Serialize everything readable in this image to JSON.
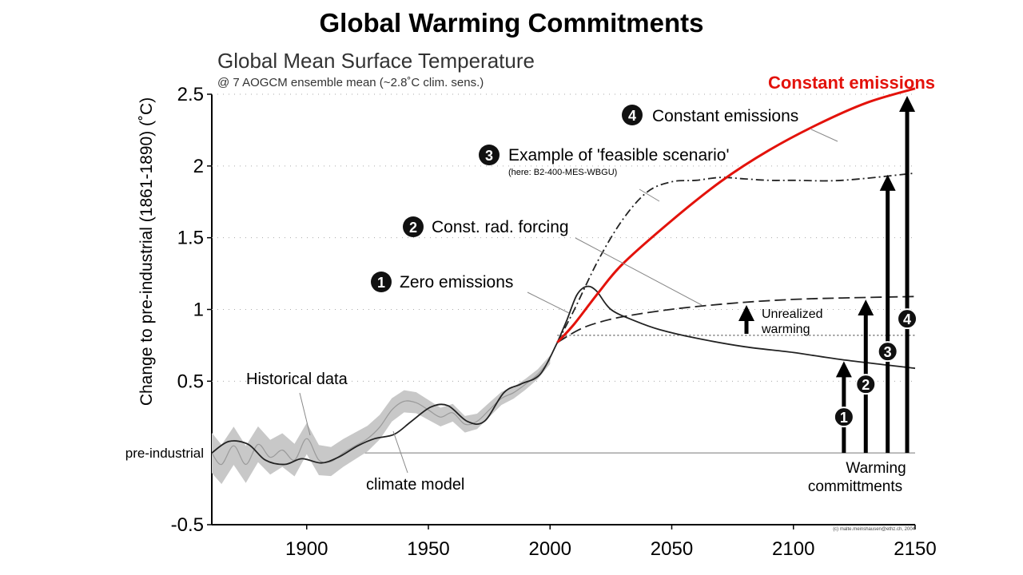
{
  "slide": {
    "title": "Global Warming Commitments"
  },
  "chart_data": {
    "type": "line",
    "title": "Global Mean Surface Temperature",
    "subtitle": "@ 7 AOGCM ensemble mean (~2.8˚C clim. sens.)",
    "ylabel": "Change to pre-industrial (1861-1890) (˚C)",
    "xlabel": "",
    "xlim": [
      1861,
      2150
    ],
    "ylim": [
      -0.5,
      2.5
    ],
    "x_ticks": [
      "1900",
      "1950",
      "2000",
      "2050",
      "2100",
      "2150"
    ],
    "y_ticks": [
      "-0.5",
      "0.5",
      "1",
      "1.5",
      "2",
      "2.5"
    ],
    "y_ref_label": "pre-industrial",
    "highlight_label": "Constant emissions",
    "credit": "(c) malte.meinshausen@ethz.ch, 2004",
    "colors": {
      "highlight": "#e3120b",
      "line": "#222222",
      "band": "#c8c8c8",
      "axis": "#000000"
    },
    "annotations": {
      "historical": "Historical data",
      "model": "climate model",
      "unrealized_1": "Unrealized",
      "unrealized_2": "warming",
      "commit_1": "Warming",
      "commit_2": "committments"
    },
    "scenarios": [
      {
        "num": "1",
        "label": "Zero emissions"
      },
      {
        "num": "2",
        "label": "Const. rad. forcing"
      },
      {
        "num": "3",
        "label": "Example of 'feasible scenario'",
        "sublabel": "(here: B2-400-MES-WBGU)"
      },
      {
        "num": "4",
        "label": "Constant emissions"
      }
    ],
    "series": [
      {
        "key": "model",
        "x": [
          1861,
          1868,
          1876,
          1883,
          1891,
          1898,
          1906,
          1913,
          1921,
          1928,
          1936,
          1943,
          1951,
          1958,
          1966,
          1973,
          1981,
          1988,
          1996,
          2003
        ],
        "y": [
          0.0,
          0.08,
          0.06,
          -0.05,
          -0.08,
          -0.04,
          -0.07,
          -0.03,
          0.05,
          0.1,
          0.13,
          0.22,
          0.32,
          0.33,
          0.22,
          0.22,
          0.42,
          0.48,
          0.55,
          0.77
        ]
      },
      {
        "key": "historical",
        "x": [
          1861,
          1865,
          1870,
          1875,
          1880,
          1885,
          1890,
          1895,
          1900,
          1905,
          1910,
          1915,
          1920,
          1925,
          1930,
          1935,
          1940,
          1945,
          1950,
          1955,
          1960,
          1965,
          1970,
          1975,
          1980,
          1985,
          1990,
          1995,
          2000
        ],
        "y": [
          0.0,
          -0.08,
          0.05,
          -0.08,
          0.06,
          -0.03,
          0.02,
          -0.05,
          0.1,
          -0.05,
          -0.06,
          0.0,
          0.05,
          0.1,
          0.18,
          0.3,
          0.36,
          0.35,
          0.3,
          0.25,
          0.28,
          0.2,
          0.22,
          0.3,
          0.38,
          0.42,
          0.48,
          0.55,
          0.65
        ]
      },
      {
        "key": "zero_emissions",
        "x": [
          2003,
          2007,
          2011,
          2015,
          2019,
          2025,
          2035,
          2045,
          2060,
          2080,
          2100,
          2120,
          2150
        ],
        "y": [
          0.77,
          0.93,
          1.1,
          1.16,
          1.13,
          1.0,
          0.92,
          0.86,
          0.8,
          0.74,
          0.7,
          0.65,
          0.59
        ]
      },
      {
        "key": "const_forcing",
        "x": [
          2003,
          2012,
          2020,
          2030,
          2045,
          2060,
          2080,
          2100,
          2120,
          2150
        ],
        "y": [
          0.77,
          0.86,
          0.91,
          0.95,
          0.99,
          1.02,
          1.05,
          1.07,
          1.08,
          1.09
        ]
      },
      {
        "key": "feasible",
        "x": [
          2003,
          2010,
          2020,
          2030,
          2040,
          2050,
          2060,
          2070,
          2080,
          2090,
          2100,
          2120,
          2150
        ],
        "y": [
          0.77,
          1.0,
          1.35,
          1.63,
          1.82,
          1.89,
          1.9,
          1.92,
          1.91,
          1.9,
          1.9,
          1.9,
          1.95
        ]
      },
      {
        "key": "constant_emissions",
        "name": "Constant emissions",
        "x": [
          2003,
          2010,
          2020,
          2030,
          2050,
          2070,
          2090,
          2110,
          2130,
          2150
        ],
        "y": [
          0.77,
          0.9,
          1.12,
          1.32,
          1.62,
          1.89,
          2.11,
          2.29,
          2.44,
          2.54
        ]
      }
    ],
    "commitment_arrows": [
      {
        "num": "1",
        "x": 2125,
        "top": 0.65
      },
      {
        "num": "2",
        "x": 2134,
        "top": 1.08
      },
      {
        "num": "3",
        "x": 2143,
        "top": 1.95
      },
      {
        "num": "4",
        "x": 2151,
        "top": 2.5
      }
    ]
  }
}
